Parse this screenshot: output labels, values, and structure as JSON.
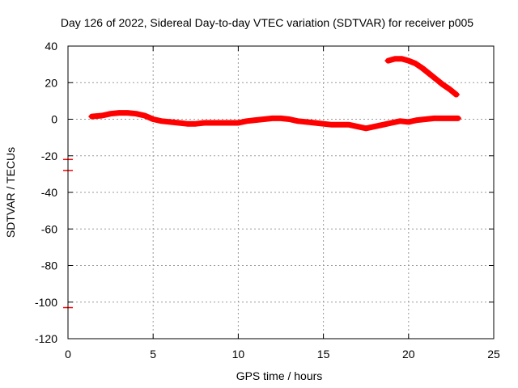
{
  "chart_data": {
    "type": "scatter",
    "title": "Day 126 of 2022, Sidereal Day-to-day VTEC variation (SDTVAR) for receiver p005",
    "xlabel": "GPS time / hours",
    "ylabel": "SDTVAR / TECUs",
    "xlim": [
      0,
      25
    ],
    "ylim": [
      -120,
      40
    ],
    "xticks": [
      0,
      5,
      10,
      15,
      20,
      25
    ],
    "yticks": [
      -120,
      -100,
      -80,
      -60,
      -40,
      -20,
      0,
      20,
      40
    ],
    "grid": true,
    "series": [
      {
        "name": "SDTVAR main trace",
        "color": "#ff0000",
        "x": [
          1.4,
          2.0,
          2.5,
          3.0,
          3.5,
          4.0,
          4.5,
          5.0,
          5.5,
          6.0,
          6.5,
          7.0,
          7.5,
          8.0,
          8.5,
          9.0,
          9.5,
          10.0,
          10.5,
          11.0,
          11.5,
          12.0,
          12.5,
          13.0,
          13.5,
          14.0,
          14.5,
          15.0,
          15.5,
          16.0,
          16.5,
          17.0,
          17.5,
          18.0,
          18.5,
          19.0,
          19.5,
          20.0,
          20.5,
          21.0,
          21.5,
          22.0,
          22.5,
          22.9
        ],
        "y": [
          1.5,
          2.0,
          3.0,
          3.5,
          3.5,
          3.0,
          2.0,
          0.0,
          -1.0,
          -1.5,
          -2.0,
          -2.5,
          -2.5,
          -2.0,
          -2.0,
          -2.0,
          -2.0,
          -2.0,
          -1.0,
          -0.5,
          0.0,
          0.5,
          0.5,
          0.0,
          -1.0,
          -1.5,
          -2.0,
          -2.5,
          -3.0,
          -3.0,
          -3.0,
          -4.0,
          -5.0,
          -4.0,
          -3.0,
          -2.0,
          -1.0,
          -1.5,
          -0.5,
          0.0,
          0.5,
          0.5,
          0.5,
          0.5
        ]
      },
      {
        "name": "SDTVAR late arc",
        "color": "#ff0000",
        "x": [
          18.8,
          19.2,
          19.6,
          20.0,
          20.4,
          20.8,
          21.2,
          21.6,
          22.0,
          22.4,
          22.8
        ],
        "y": [
          32.0,
          33.0,
          33.0,
          32.0,
          30.5,
          28.0,
          25.0,
          22.0,
          19.0,
          16.5,
          13.5
        ]
      },
      {
        "name": "SDTVAR isolated points",
        "color": "#ff0000",
        "x": [
          0.0,
          0.0,
          0.0
        ],
        "y": [
          -22.0,
          -28.0,
          -103.0
        ]
      }
    ]
  }
}
